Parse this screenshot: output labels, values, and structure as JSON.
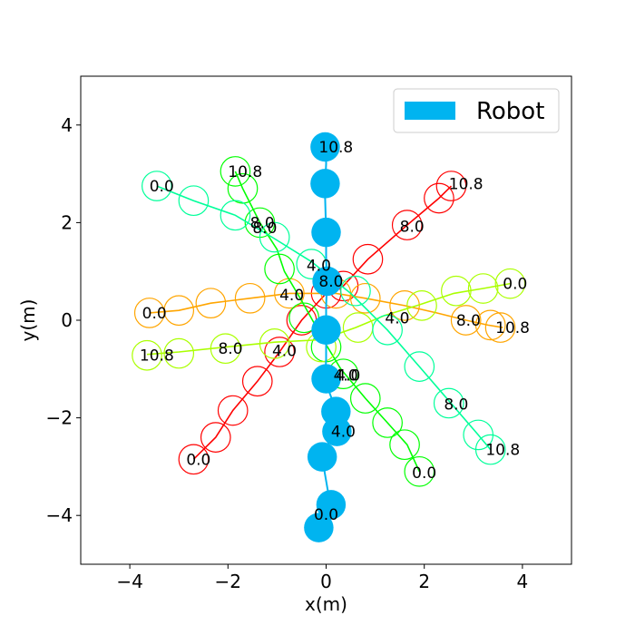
{
  "chart_data": {
    "type": "line",
    "title": "",
    "xlabel": "x(m)",
    "ylabel": "y(m)",
    "xlim": [
      -5,
      5
    ],
    "ylim": [
      -5,
      5
    ],
    "xticks": [
      -4,
      -2,
      0,
      2,
      4
    ],
    "yticks": [
      -4,
      -2,
      0,
      2,
      4
    ],
    "xtick_labels": [
      "−4",
      "−2",
      "0",
      "2",
      "4"
    ],
    "ytick_labels": [
      "−4",
      "−2",
      "0",
      "2",
      "4"
    ],
    "grid": false,
    "legend": {
      "placement": "top-right",
      "entries": [
        {
          "label": "Robot",
          "color": "#00b4f0"
        }
      ]
    },
    "robot": {
      "name": "Robot",
      "color": "#00b4f0",
      "radius": 0.3,
      "path": [
        [
          -0.1,
          -4.2
        ],
        [
          0.0,
          -3.9
        ],
        [
          0.08,
          -3.75
        ],
        [
          -0.05,
          -3.0
        ],
        [
          -0.08,
          -2.8
        ],
        [
          0.1,
          -2.4
        ],
        [
          0.25,
          -2.25
        ],
        [
          0.2,
          -1.9
        ],
        [
          0.15,
          -1.7
        ],
        [
          0.0,
          -1.3
        ],
        [
          -0.02,
          -1.2
        ],
        [
          0.0,
          -0.8
        ],
        [
          0.0,
          -0.25
        ],
        [
          0.0,
          0.0
        ],
        [
          0.0,
          0.3
        ],
        [
          0.02,
          0.8
        ],
        [
          0.0,
          1.3
        ],
        [
          0.0,
          1.8
        ],
        [
          -0.02,
          2.5
        ],
        [
          -0.02,
          2.8
        ],
        [
          0.0,
          3.2
        ],
        [
          0.0,
          3.55
        ]
      ],
      "circles": [
        [
          -0.15,
          -4.25
        ],
        [
          0.1,
          -3.78
        ],
        [
          -0.08,
          -2.8
        ],
        [
          0.22,
          -2.28
        ],
        [
          0.2,
          -1.87
        ],
        [
          0.0,
          -1.2
        ],
        [
          0.0,
          -0.2
        ],
        [
          0.02,
          0.8
        ],
        [
          0.0,
          1.8
        ],
        [
          -0.02,
          2.8
        ],
        [
          -0.02,
          3.55
        ]
      ],
      "time_labels": [
        {
          "x": 0.0,
          "y": -3.98,
          "text": "0.0"
        },
        {
          "x": 0.35,
          "y": -2.28,
          "text": "4.0"
        },
        {
          "x": 0.4,
          "y": -1.12,
          "text": "4.0"
        },
        {
          "x": 0.1,
          "y": 0.8,
          "text": "8.0"
        },
        {
          "x": -0.15,
          "y": 1.12,
          "text": "4.0"
        },
        {
          "x": 0.2,
          "y": 3.55,
          "text": "10.8"
        }
      ]
    },
    "humans": [
      {
        "color": "#ff0000",
        "radius": 0.3,
        "path": [
          [
            -2.7,
            -2.85
          ],
          [
            -2.25,
            -2.4
          ],
          [
            -1.9,
            -1.85
          ],
          [
            -1.4,
            -1.25
          ],
          [
            -0.95,
            -0.65
          ],
          [
            -0.5,
            0.0
          ],
          [
            0.0,
            0.55
          ],
          [
            0.35,
            0.7
          ],
          [
            0.85,
            1.25
          ],
          [
            1.65,
            1.95
          ],
          [
            2.3,
            2.5
          ],
          [
            2.55,
            2.75
          ]
        ],
        "circles": [
          [
            -2.7,
            -2.85
          ],
          [
            -2.25,
            -2.4
          ],
          [
            -1.9,
            -1.85
          ],
          [
            -1.4,
            -1.25
          ],
          [
            -0.95,
            -0.65
          ],
          [
            -0.5,
            0.0
          ],
          [
            0.0,
            0.55
          ],
          [
            0.35,
            0.7
          ],
          [
            0.85,
            1.25
          ],
          [
            1.65,
            1.95
          ],
          [
            2.3,
            2.5
          ],
          [
            2.55,
            2.75
          ]
        ],
        "time_labels": [
          {
            "x": -2.6,
            "y": -2.85,
            "text": "0.0"
          },
          {
            "x": -0.85,
            "y": -0.62,
            "text": "4.0"
          },
          {
            "x": 1.75,
            "y": 1.92,
            "text": "8.0"
          },
          {
            "x": 2.85,
            "y": 2.8,
            "text": "10.8"
          }
        ]
      },
      {
        "color": "#ffa500",
        "radius": 0.3,
        "path": [
          [
            -3.6,
            0.15
          ],
          [
            -3.0,
            0.2
          ],
          [
            -2.35,
            0.35
          ],
          [
            -1.55,
            0.45
          ],
          [
            -0.75,
            0.55
          ],
          [
            0.2,
            0.55
          ],
          [
            0.8,
            0.45
          ],
          [
            1.6,
            0.3
          ],
          [
            2.25,
            0.15
          ],
          [
            2.85,
            0.0
          ],
          [
            3.3,
            -0.1
          ],
          [
            3.6,
            -0.15
          ]
        ],
        "circles": [
          [
            -3.6,
            0.15
          ],
          [
            -3.0,
            0.2
          ],
          [
            -2.35,
            0.35
          ],
          [
            -1.55,
            0.45
          ],
          [
            -0.75,
            0.55
          ],
          [
            0.2,
            0.55
          ],
          [
            0.8,
            0.45
          ],
          [
            1.6,
            0.3
          ],
          [
            2.85,
            0.0
          ],
          [
            3.35,
            -0.1
          ],
          [
            3.55,
            -0.15
          ]
        ],
        "time_labels": [
          {
            "x": -3.5,
            "y": 0.15,
            "text": "0.0"
          },
          {
            "x": -0.7,
            "y": 0.52,
            "text": "4.0"
          },
          {
            "x": 2.9,
            "y": 0.0,
            "text": "8.0"
          },
          {
            "x": 3.8,
            "y": -0.15,
            "text": "10.8"
          }
        ]
      },
      {
        "color": "#00ff00",
        "radius": 0.3,
        "path": [
          [
            -1.85,
            3.05
          ],
          [
            -1.7,
            2.7
          ],
          [
            -1.35,
            2.0
          ],
          [
            -1.0,
            1.45
          ],
          [
            -0.85,
            1.0
          ],
          [
            -0.5,
            0.4
          ],
          [
            0.0,
            -0.5
          ],
          [
            0.3,
            -1.0
          ],
          [
            0.8,
            -1.6
          ],
          [
            1.25,
            -2.1
          ],
          [
            1.65,
            -2.55
          ],
          [
            1.9,
            -3.1
          ]
        ],
        "circles": [
          [
            -1.85,
            3.05
          ],
          [
            -1.7,
            2.7
          ],
          [
            -1.35,
            2.0
          ],
          [
            -0.95,
            1.05
          ],
          [
            -0.45,
            0.05
          ],
          [
            0.0,
            -0.55
          ],
          [
            0.35,
            -1.1
          ],
          [
            0.8,
            -1.6
          ],
          [
            1.25,
            -2.1
          ],
          [
            1.6,
            -2.55
          ],
          [
            1.9,
            -3.1
          ]
        ],
        "time_labels": [
          {
            "x": -1.65,
            "y": 3.05,
            "text": "10.8"
          },
          {
            "x": -1.3,
            "y": 2.0,
            "text": "8.0"
          },
          {
            "x": 0.45,
            "y": -1.12,
            "text": "4.0"
          },
          {
            "x": 2.0,
            "y": -3.12,
            "text": "0.0"
          }
        ]
      },
      {
        "color": "#aaff00",
        "radius": 0.3,
        "path": [
          [
            -3.65,
            -0.7
          ],
          [
            -3.0,
            -0.65
          ],
          [
            -2.05,
            -0.55
          ],
          [
            -1.05,
            -0.45
          ],
          [
            -0.1,
            -0.4
          ],
          [
            0.6,
            -0.15
          ],
          [
            1.2,
            0.1
          ],
          [
            1.85,
            0.3
          ],
          [
            2.6,
            0.55
          ],
          [
            3.2,
            0.65
          ],
          [
            3.75,
            0.75
          ]
        ],
        "circles": [
          [
            -3.65,
            -0.72
          ],
          [
            -3.0,
            -0.68
          ],
          [
            -2.05,
            -0.58
          ],
          [
            -1.05,
            -0.48
          ],
          [
            -0.1,
            -0.55
          ],
          [
            0.65,
            -0.15
          ],
          [
            1.95,
            0.3
          ],
          [
            2.65,
            0.6
          ],
          [
            3.2,
            0.65
          ],
          [
            3.75,
            0.75
          ]
        ],
        "time_labels": [
          {
            "x": -3.45,
            "y": -0.72,
            "text": "10.8"
          },
          {
            "x": -1.95,
            "y": -0.58,
            "text": "8.0"
          },
          {
            "x": 1.45,
            "y": 0.05,
            "text": "4.0"
          },
          {
            "x": 3.85,
            "y": 0.75,
            "text": "0.0"
          }
        ]
      },
      {
        "color": "#00ff9a",
        "radius": 0.3,
        "path": [
          [
            -3.45,
            2.75
          ],
          [
            -2.7,
            2.45
          ],
          [
            -1.85,
            2.15
          ],
          [
            -1.1,
            1.7
          ],
          [
            -0.3,
            1.2
          ],
          [
            0.5,
            0.55
          ],
          [
            1.25,
            -0.2
          ],
          [
            1.9,
            -0.95
          ],
          [
            2.5,
            -1.65
          ],
          [
            3.1,
            -2.35
          ],
          [
            3.35,
            -2.65
          ]
        ],
        "circles": [
          [
            -3.45,
            2.75
          ],
          [
            -2.7,
            2.45
          ],
          [
            -1.85,
            2.15
          ],
          [
            -1.05,
            1.7
          ],
          [
            -0.3,
            1.15
          ],
          [
            0.6,
            0.6
          ],
          [
            1.25,
            -0.2
          ],
          [
            1.9,
            -0.95
          ],
          [
            2.5,
            -1.7
          ],
          [
            3.1,
            -2.35
          ],
          [
            3.35,
            -2.65
          ]
        ],
        "time_labels": [
          {
            "x": -3.35,
            "y": 2.75,
            "text": "0.0"
          },
          {
            "x": -1.25,
            "y": 1.9,
            "text": "8.0"
          },
          {
            "x": 2.65,
            "y": -1.72,
            "text": "8.0"
          },
          {
            "x": 3.6,
            "y": -2.65,
            "text": "10.8"
          }
        ]
      }
    ]
  }
}
